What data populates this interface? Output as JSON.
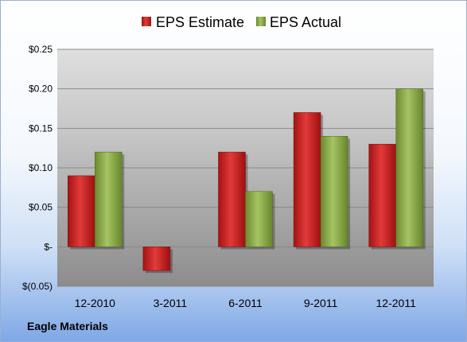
{
  "chart_data": {
    "type": "bar",
    "categories": [
      "12-2010",
      "3-2011",
      "6-2011",
      "9-2011",
      "12-2011"
    ],
    "series": [
      {
        "name": "EPS Estimate",
        "values": [
          0.09,
          -0.03,
          0.12,
          0.17,
          0.13
        ]
      },
      {
        "name": "EPS Actual",
        "values": [
          0.12,
          null,
          0.07,
          0.14,
          0.2
        ]
      }
    ],
    "ylim": [
      -0.05,
      0.25
    ],
    "yticks": [
      {
        "value": 0.25,
        "label": "$0.25"
      },
      {
        "value": 0.2,
        "label": "$0.20"
      },
      {
        "value": 0.15,
        "label": "$0.15"
      },
      {
        "value": 0.1,
        "label": "$0.10"
      },
      {
        "value": 0.05,
        "label": "$0.05"
      },
      {
        "value": 0.0,
        "label": "$-"
      },
      {
        "value": -0.05,
        "label": "$(0.05)"
      }
    ],
    "grid": true,
    "legend": "top-center"
  },
  "colors": {
    "estimate": "#cc1f1f",
    "actual": "#8fae4a"
  },
  "footer": {
    "company": "Eagle Materials"
  }
}
